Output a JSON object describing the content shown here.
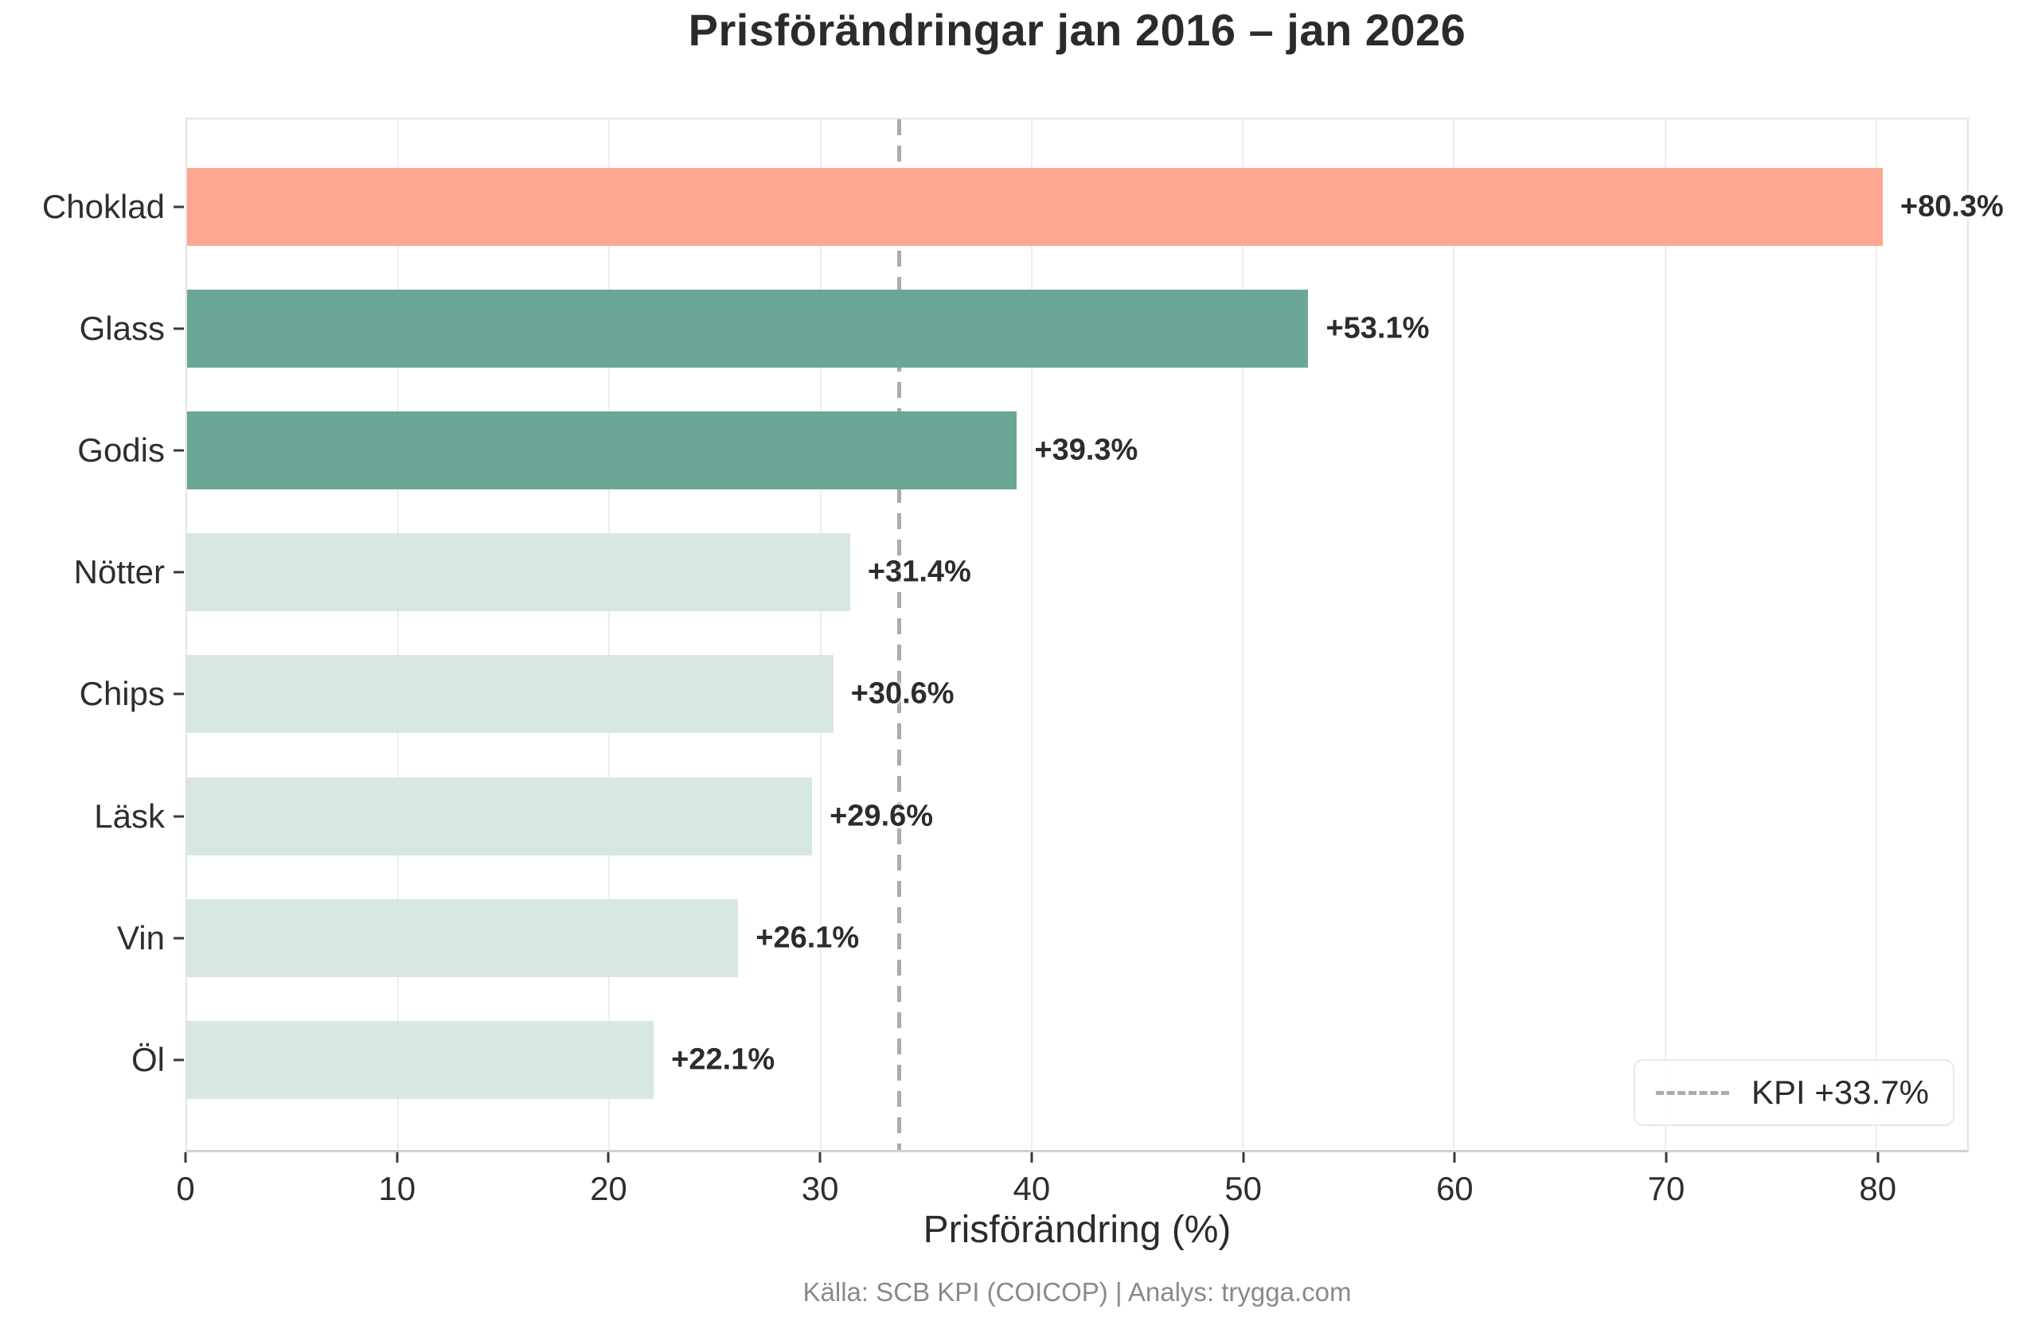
{
  "title": "Prisförändringar jan 2016 – jan 2026",
  "chart_data": {
    "type": "bar",
    "orientation": "horizontal",
    "title": "Prisförändringar jan 2016 – jan 2026",
    "categories": [
      "Choklad",
      "Glass",
      "Godis",
      "Nötter",
      "Chips",
      "Läsk",
      "Vin",
      "Öl"
    ],
    "values": [
      80.3,
      53.1,
      39.3,
      31.4,
      30.6,
      29.6,
      26.1,
      22.1
    ],
    "value_labels": [
      "+80.3%",
      "+53.1%",
      "+39.3%",
      "+31.4%",
      "+30.6%",
      "+29.6%",
      "+26.1%",
      "+22.1%"
    ],
    "bar_colors": [
      "#FDA792",
      "#6BA796",
      "#6BA796",
      "#D6E8E0",
      "#D6E8E0",
      "#D6E8E0",
      "#D6E8E0",
      "#D6E8E0"
    ],
    "xlabel": "Prisförändring (%)",
    "xlim": [
      0,
      84.3
    ],
    "xticks": [
      0,
      10,
      20,
      30,
      40,
      50,
      60,
      70,
      80
    ],
    "grid": "vertical-only",
    "reference_line": {
      "value": 33.7,
      "label": "KPI +33.7%",
      "style": "dashed",
      "color": "#ababab"
    },
    "legend_position": "lower-right"
  },
  "footer": {
    "source_text": "Källa: SCB KPI (COICOP) | Analys: trygga.com"
  },
  "colors": {
    "highlight_bar": "#FDA792",
    "medium_bar": "#6BA796",
    "light_bar": "#D6E8E0",
    "gridline": "#ededed",
    "text_dark": "#2b2b2b",
    "text_muted": "#8a8a8a",
    "reference_line": "#ababab"
  }
}
